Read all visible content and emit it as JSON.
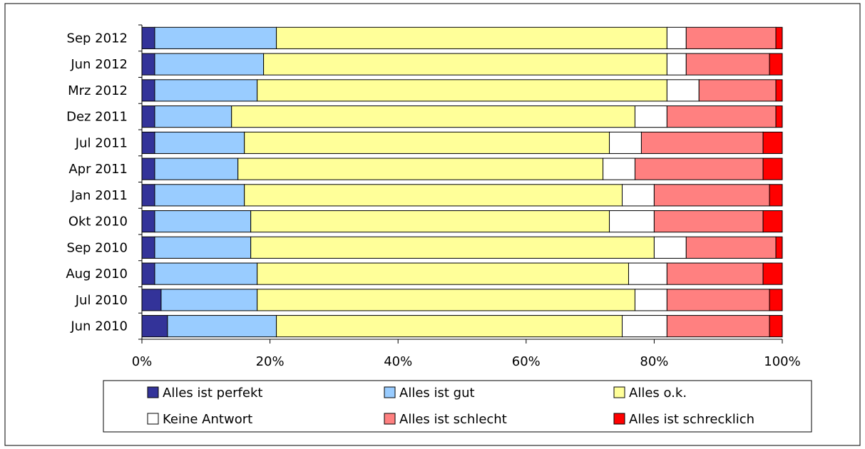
{
  "chart_data": {
    "type": "bar",
    "orientation": "horizontal",
    "stacked": "percent",
    "categories": [
      "Jun 2010",
      "Jul 2010",
      "Aug 2010",
      "Sep 2010",
      "Okt 2010",
      "Jan 2011",
      "Apr 2011",
      "Jul 2011",
      "Dez 2011",
      "Mrz 2012",
      "Jun 2012",
      "Sep 2012"
    ],
    "series": [
      {
        "name": "Alles ist perfekt",
        "color": "#333399",
        "values": [
          4,
          3,
          2,
          2,
          2,
          2,
          2,
          2,
          2,
          2,
          2,
          2
        ]
      },
      {
        "name": "Alles ist gut",
        "color": "#99CCFF",
        "values": [
          17,
          15,
          16,
          15,
          15,
          14,
          13,
          14,
          12,
          16,
          17,
          19
        ]
      },
      {
        "name": "Alles o.k.",
        "color": "#FFFF99",
        "values": [
          54,
          59,
          58,
          63,
          56,
          59,
          57,
          57,
          63,
          64,
          63,
          61
        ]
      },
      {
        "name": "Keine Antwort",
        "color": "#FFFFFF",
        "values": [
          7,
          5,
          6,
          5,
          7,
          5,
          5,
          5,
          5,
          5,
          3,
          3
        ]
      },
      {
        "name": "Alles ist schlecht",
        "color": "#FF8080",
        "values": [
          16,
          16,
          15,
          14,
          17,
          18,
          20,
          19,
          17,
          12,
          13,
          14
        ]
      },
      {
        "name": "Alles ist schrecklich",
        "color": "#FF0000",
        "values": [
          2,
          2,
          3,
          1,
          3,
          2,
          3,
          3,
          1,
          1,
          2,
          1
        ]
      }
    ],
    "xlim": [
      0,
      100
    ],
    "x_ticks": [
      "0%",
      "20%",
      "40%",
      "60%",
      "80%",
      "100%"
    ],
    "grid": false,
    "legend": {
      "position": "bottom",
      "columns": 3,
      "order": [
        0,
        1,
        2,
        3,
        4,
        5
      ]
    }
  }
}
